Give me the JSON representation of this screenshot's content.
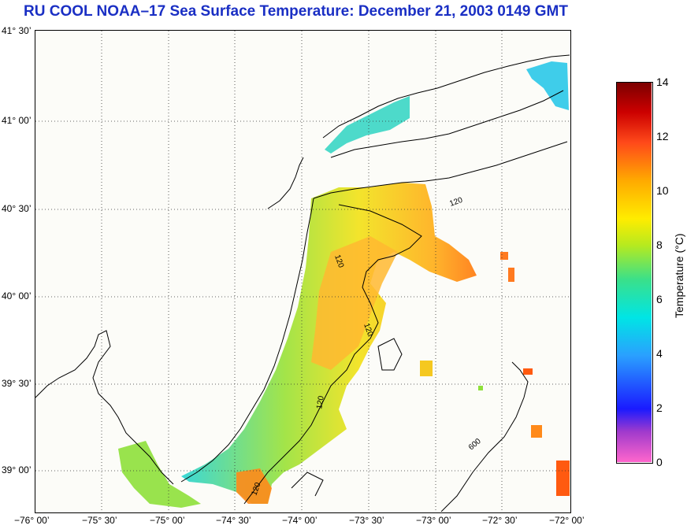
{
  "title": "RU COOL  NOAA–17  Sea Surface Temperature:  December 21, 2003 0149 GMT",
  "map": {
    "lat_labels": [
      "41° 30’",
      "41° 00’",
      "40° 30’",
      "40° 00’",
      "39° 30’",
      "39° 00’"
    ],
    "lon_labels": [
      "−76° 00’",
      "−75° 30’",
      "−75° 00’",
      "−74° 30’",
      "−74° 00’",
      "−73° 30’",
      "−73° 00’",
      "−72° 30’",
      "−72° 00’"
    ],
    "contour_labels": [
      "120",
      "120",
      "120",
      "120",
      "120",
      "600"
    ]
  },
  "colorbar": {
    "title": "Temperature (°C)",
    "ticks": [
      "14",
      "12",
      "10",
      "8",
      "6",
      "4",
      "2",
      "0"
    ],
    "min": 0,
    "max": 14,
    "colors": [
      "#ff33cc",
      "#7a2fd0",
      "#1a1aff",
      "#1e9bff",
      "#00e5e5",
      "#33e07a",
      "#b5ea1f",
      "#ffe600",
      "#ffa500",
      "#ff4a1a",
      "#d40000",
      "#7a0000"
    ]
  }
}
